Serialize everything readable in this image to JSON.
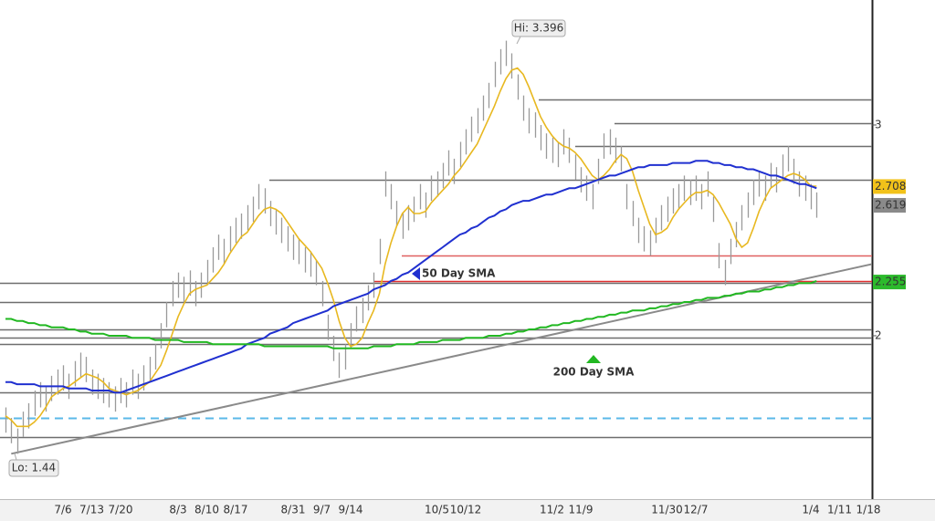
{
  "chart_data": {
    "type": "ohlc",
    "ylim": [
      1.225,
      3.593
    ],
    "yticks": [
      2,
      3
    ],
    "grid": false,
    "bar_color": "#9a9a9a",
    "categories": [
      null,
      null,
      null,
      null,
      null,
      null,
      null,
      null,
      null,
      null,
      "7/6",
      null,
      null,
      null,
      null,
      "7/13",
      null,
      null,
      null,
      null,
      "7/20",
      null,
      null,
      null,
      null,
      null,
      null,
      null,
      null,
      null,
      "8/3",
      null,
      null,
      null,
      null,
      "8/10",
      null,
      null,
      null,
      null,
      "8/17",
      null,
      null,
      null,
      null,
      null,
      null,
      null,
      null,
      null,
      "8/31",
      null,
      null,
      null,
      null,
      "9/7",
      null,
      null,
      null,
      null,
      "9/14",
      null,
      null,
      null,
      null,
      null,
      null,
      null,
      null,
      null,
      null,
      null,
      null,
      null,
      null,
      "10/5",
      null,
      null,
      null,
      null,
      "10/12",
      null,
      null,
      null,
      null,
      null,
      null,
      null,
      null,
      null,
      null,
      null,
      null,
      null,
      null,
      "11/2",
      null,
      null,
      null,
      null,
      "11/9",
      null,
      null,
      null,
      null,
      null,
      null,
      null,
      null,
      null,
      null,
      null,
      null,
      null,
      null,
      "11/30",
      null,
      null,
      null,
      null,
      "12/7",
      null,
      null,
      null,
      null,
      null,
      null,
      null,
      null,
      null,
      null,
      null,
      null,
      null,
      null,
      null,
      null,
      null,
      null,
      null,
      "1/4",
      null,
      null,
      null,
      null,
      "1/11",
      null,
      null,
      null,
      null,
      "1/18"
    ],
    "high": [
      1.66,
      1.61,
      1.56,
      1.64,
      1.68,
      1.74,
      1.78,
      1.76,
      1.81,
      1.84,
      1.86,
      1.82,
      1.88,
      1.92,
      1.9,
      1.84,
      1.82,
      1.8,
      1.78,
      1.76,
      1.8,
      1.78,
      1.84,
      1.82,
      1.86,
      1.9,
      1.96,
      2.06,
      2.16,
      2.26,
      2.3,
      2.28,
      2.31,
      2.26,
      2.3,
      2.36,
      2.42,
      2.48,
      2.46,
      2.52,
      2.56,
      2.58,
      2.62,
      2.66,
      2.72,
      2.7,
      2.64,
      2.6,
      2.56,
      2.52,
      2.48,
      2.46,
      2.42,
      2.4,
      2.36,
      2.26,
      2.1,
      2.0,
      1.92,
      1.96,
      2.06,
      2.14,
      2.18,
      2.24,
      2.3,
      2.46,
      2.78,
      2.72,
      2.64,
      2.58,
      2.62,
      2.66,
      2.72,
      2.68,
      2.76,
      2.78,
      2.82,
      2.88,
      2.84,
      2.92,
      2.98,
      3.04,
      3.08,
      3.14,
      3.2,
      3.3,
      3.36,
      3.4,
      3.34,
      3.24,
      3.14,
      3.08,
      3.06,
      3.0,
      2.96,
      2.94,
      2.92,
      2.98,
      2.94,
      2.86,
      2.8,
      2.76,
      2.72,
      2.84,
      2.96,
      2.98,
      2.94,
      2.9,
      2.72,
      2.64,
      2.56,
      2.52,
      2.5,
      2.56,
      2.62,
      2.66,
      2.7,
      2.72,
      2.76,
      2.74,
      2.76,
      2.72,
      2.78,
      2.66,
      2.44,
      2.36,
      2.46,
      2.54,
      2.62,
      2.68,
      2.74,
      2.78,
      2.76,
      2.82,
      2.8,
      2.86,
      2.9,
      2.84,
      2.78,
      2.76,
      2.72,
      2.68,
      null,
      null,
      null,
      null,
      null,
      null,
      null,
      null,
      null
    ],
    "low": [
      1.54,
      1.49,
      1.44,
      1.52,
      1.56,
      1.62,
      1.66,
      1.64,
      1.69,
      1.72,
      1.74,
      1.7,
      1.76,
      1.8,
      1.78,
      1.72,
      1.7,
      1.68,
      1.66,
      1.64,
      1.68,
      1.66,
      1.72,
      1.7,
      1.74,
      1.78,
      1.84,
      1.94,
      2.04,
      2.14,
      2.18,
      2.16,
      2.19,
      2.14,
      2.18,
      2.24,
      2.3,
      2.36,
      2.34,
      2.4,
      2.44,
      2.46,
      2.5,
      2.54,
      2.6,
      2.58,
      2.52,
      2.48,
      2.44,
      2.4,
      2.36,
      2.34,
      2.3,
      2.28,
      2.24,
      2.14,
      1.98,
      1.88,
      1.8,
      1.84,
      1.94,
      2.02,
      2.06,
      2.12,
      2.18,
      2.34,
      2.66,
      2.6,
      2.52,
      2.46,
      2.5,
      2.54,
      2.6,
      2.56,
      2.64,
      2.66,
      2.7,
      2.76,
      2.72,
      2.8,
      2.86,
      2.92,
      2.96,
      3.02,
      3.08,
      3.18,
      3.24,
      3.28,
      3.22,
      3.12,
      3.02,
      2.96,
      2.94,
      2.88,
      2.84,
      2.82,
      2.8,
      2.86,
      2.82,
      2.74,
      2.68,
      2.64,
      2.6,
      2.72,
      2.84,
      2.86,
      2.82,
      2.78,
      2.6,
      2.52,
      2.44,
      2.4,
      2.38,
      2.44,
      2.5,
      2.54,
      2.58,
      2.6,
      2.64,
      2.62,
      2.64,
      2.6,
      2.66,
      2.54,
      2.32,
      2.24,
      2.34,
      2.42,
      2.5,
      2.56,
      2.62,
      2.66,
      2.64,
      2.7,
      2.68,
      2.74,
      2.78,
      2.72,
      2.66,
      2.64,
      2.6,
      2.56,
      null,
      null,
      null,
      null,
      null,
      null,
      null,
      null,
      null
    ],
    "series": [
      {
        "color": "#e8b820",
        "values": [
          1.62,
          1.6,
          1.57,
          1.57,
          1.57,
          1.59,
          1.62,
          1.66,
          1.71,
          1.73,
          1.75,
          1.76,
          1.78,
          1.8,
          1.82,
          1.81,
          1.8,
          1.78,
          1.75,
          1.74,
          1.73,
          1.72,
          1.73,
          1.74,
          1.76,
          1.78,
          1.82,
          1.86,
          1.93,
          2.01,
          2.09,
          2.15,
          2.2,
          2.22,
          2.23,
          2.24,
          2.27,
          2.3,
          2.34,
          2.39,
          2.43,
          2.47,
          2.49,
          2.53,
          2.57,
          2.6,
          2.61,
          2.6,
          2.58,
          2.54,
          2.5,
          2.46,
          2.43,
          2.4,
          2.36,
          2.32,
          2.25,
          2.17,
          2.07,
          1.99,
          1.95,
          1.96,
          1.99,
          2.06,
          2.12,
          2.2,
          2.34,
          2.44,
          2.52,
          2.58,
          2.61,
          2.58,
          2.58,
          2.59,
          2.63,
          2.66,
          2.69,
          2.72,
          2.76,
          2.79,
          2.83,
          2.87,
          2.91,
          2.97,
          3.03,
          3.09,
          3.16,
          3.22,
          3.26,
          3.27,
          3.24,
          3.18,
          3.11,
          3.04,
          2.99,
          2.95,
          2.92,
          2.9,
          2.89,
          2.87,
          2.84,
          2.8,
          2.76,
          2.74,
          2.76,
          2.79,
          2.83,
          2.86,
          2.84,
          2.78,
          2.69,
          2.61,
          2.53,
          2.48,
          2.49,
          2.51,
          2.56,
          2.6,
          2.63,
          2.66,
          2.68,
          2.68,
          2.69,
          2.67,
          2.63,
          2.58,
          2.53,
          2.46,
          2.42,
          2.44,
          2.51,
          2.59,
          2.65,
          2.7,
          2.72,
          2.74,
          2.76,
          2.77,
          2.76,
          2.74,
          2.71,
          2.71,
          null,
          null,
          null,
          null,
          null,
          null,
          null,
          null,
          null
        ]
      },
      {
        "name": "50 Day SMA",
        "color": "#2030d0",
        "values": [
          1.78,
          1.78,
          1.77,
          1.77,
          1.77,
          1.77,
          1.76,
          1.76,
          1.76,
          1.76,
          1.76,
          1.75,
          1.75,
          1.75,
          1.75,
          1.74,
          1.74,
          1.74,
          1.74,
          1.73,
          1.73,
          1.74,
          1.75,
          1.76,
          1.77,
          1.78,
          1.79,
          1.8,
          1.81,
          1.82,
          1.83,
          1.84,
          1.85,
          1.86,
          1.87,
          1.88,
          1.89,
          1.9,
          1.91,
          1.92,
          1.93,
          1.94,
          1.96,
          1.97,
          1.98,
          1.99,
          2.01,
          2.02,
          2.03,
          2.04,
          2.06,
          2.07,
          2.08,
          2.09,
          2.1,
          2.11,
          2.12,
          2.14,
          2.15,
          2.16,
          2.17,
          2.18,
          2.19,
          2.2,
          2.22,
          2.23,
          2.24,
          2.26,
          2.27,
          2.29,
          2.3,
          2.32,
          2.34,
          2.36,
          2.38,
          2.4,
          2.42,
          2.44,
          2.46,
          2.48,
          2.49,
          2.51,
          2.52,
          2.54,
          2.56,
          2.57,
          2.59,
          2.6,
          2.62,
          2.63,
          2.64,
          2.64,
          2.65,
          2.66,
          2.67,
          2.67,
          2.68,
          2.69,
          2.7,
          2.7,
          2.71,
          2.72,
          2.73,
          2.74,
          2.75,
          2.76,
          2.76,
          2.77,
          2.78,
          2.79,
          2.8,
          2.8,
          2.81,
          2.81,
          2.81,
          2.81,
          2.82,
          2.82,
          2.82,
          2.82,
          2.83,
          2.83,
          2.83,
          2.82,
          2.82,
          2.81,
          2.81,
          2.8,
          2.8,
          2.79,
          2.79,
          2.78,
          2.77,
          2.76,
          2.76,
          2.75,
          2.74,
          2.73,
          2.72,
          2.72,
          2.71,
          2.7,
          null,
          null,
          null,
          null,
          null,
          null,
          null,
          null,
          null
        ]
      },
      {
        "name": "200 Day SMA",
        "color": "#22b822",
        "values": [
          2.08,
          2.08,
          2.07,
          2.07,
          2.06,
          2.06,
          2.05,
          2.05,
          2.04,
          2.04,
          2.04,
          2.03,
          2.03,
          2.02,
          2.02,
          2.01,
          2.01,
          2.01,
          2.0,
          2.0,
          2.0,
          2.0,
          1.99,
          1.99,
          1.99,
          1.99,
          1.98,
          1.98,
          1.98,
          1.98,
          1.98,
          1.97,
          1.97,
          1.97,
          1.97,
          1.97,
          1.96,
          1.96,
          1.96,
          1.96,
          1.96,
          1.96,
          1.96,
          1.96,
          1.96,
          1.95,
          1.95,
          1.95,
          1.95,
          1.95,
          1.95,
          1.95,
          1.95,
          1.95,
          1.95,
          1.95,
          1.95,
          1.94,
          1.94,
          1.94,
          1.94,
          1.94,
          1.94,
          1.94,
          1.95,
          1.95,
          1.95,
          1.95,
          1.96,
          1.96,
          1.96,
          1.96,
          1.97,
          1.97,
          1.97,
          1.97,
          1.98,
          1.98,
          1.98,
          1.98,
          1.99,
          1.99,
          1.99,
          1.99,
          2.0,
          2.0,
          2.0,
          2.01,
          2.01,
          2.02,
          2.02,
          2.03,
          2.03,
          2.04,
          2.04,
          2.05,
          2.05,
          2.06,
          2.06,
          2.07,
          2.07,
          2.08,
          2.08,
          2.09,
          2.09,
          2.1,
          2.1,
          2.11,
          2.11,
          2.12,
          2.12,
          2.12,
          2.13,
          2.13,
          2.14,
          2.14,
          2.15,
          2.15,
          2.16,
          2.16,
          2.17,
          2.17,
          2.18,
          2.18,
          2.18,
          2.19,
          2.19,
          2.2,
          2.2,
          2.21,
          2.21,
          2.21,
          2.22,
          2.22,
          2.23,
          2.23,
          2.24,
          2.24,
          2.25,
          2.25,
          2.25,
          2.26,
          null,
          null,
          null,
          null,
          null,
          null,
          null,
          null,
          null
        ]
      }
    ],
    "levels": [
      {
        "value": 3.12,
        "color": "#6e6e6e"
      },
      {
        "value": 3.01,
        "color": "#6e6e6e"
      },
      {
        "value": 2.9,
        "color": "#6e6e6e"
      },
      {
        "value": 2.74,
        "color": "#6e6e6e"
      },
      {
        "value": 2.38,
        "color": "#e06060"
      },
      {
        "value": 2.26,
        "color": "#e03030"
      },
      {
        "value": 2.25,
        "color": "#6e6e6e"
      },
      {
        "value": 2.16,
        "color": "#6e6e6e"
      },
      {
        "value": 2.03,
        "color": "#6e6e6e"
      },
      {
        "value": 1.99,
        "color": "#6e6e6e"
      },
      {
        "value": 1.96,
        "color": "#6e6e6e"
      },
      {
        "value": 1.73,
        "color": "#6e6e6e"
      },
      {
        "value": 1.61,
        "color": "#5bb8e8",
        "style": "dashed"
      },
      {
        "value": 1.52,
        "color": "#6e6e6e"
      }
    ],
    "trendline": {
      "values": [
        1.44,
        2.34
      ],
      "color": "#8a8a8a"
    },
    "badges": [
      {
        "value": 2.708,
        "color": "#f2c21a",
        "text_color": "#000"
      },
      {
        "value": 2.619,
        "color": "#8a8a8a",
        "text_color": "#fff"
      },
      {
        "value": 2.255,
        "color": "#2cba2c",
        "text_color": "#fff"
      }
    ],
    "hi_label": "Hi: 3.396",
    "lo_label": "Lo: 1.44"
  }
}
